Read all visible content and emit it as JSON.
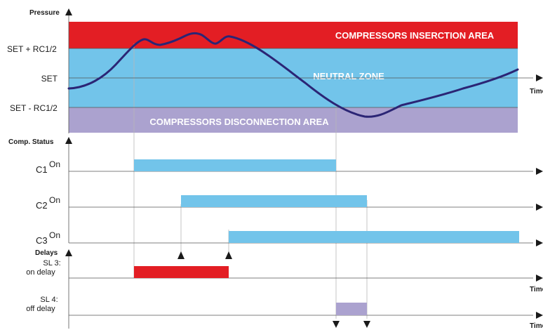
{
  "pressure": {
    "axis_title": "Pressure",
    "levels": {
      "upper": "SET + RC1/2",
      "middle": "SET",
      "lower": "SET - RC1/2"
    },
    "zones": {
      "insertion": "COMPRESSORS INSERCTION AREA",
      "neutral": "NEUTRAL ZONE",
      "disconnection": "COMPRESSORS DISCONNECTION AREA"
    },
    "time_label": "Time"
  },
  "comp_status": {
    "axis_title": "Comp. Status",
    "rows": [
      {
        "name": "C1",
        "state": "On"
      },
      {
        "name": "C2",
        "state": "On"
      },
      {
        "name": "C3",
        "state": "On"
      }
    ]
  },
  "delays": {
    "axis_title": "Delays",
    "on_delay": {
      "line1": "SL 3:",
      "line2": "on delay"
    },
    "off_delay": {
      "line1": "SL 4:",
      "line2": "off delay"
    },
    "time_label": "Time"
  },
  "colors": {
    "insertion_area": "#e31e24",
    "neutral_area": "#72c4ea",
    "disconnection_area": "#aba2cf",
    "pressure_curve": "#2b2575",
    "status_bar": "#72c4ea",
    "on_delay_bar": "#e31e24",
    "off_delay_bar": "#aba2cf"
  }
}
